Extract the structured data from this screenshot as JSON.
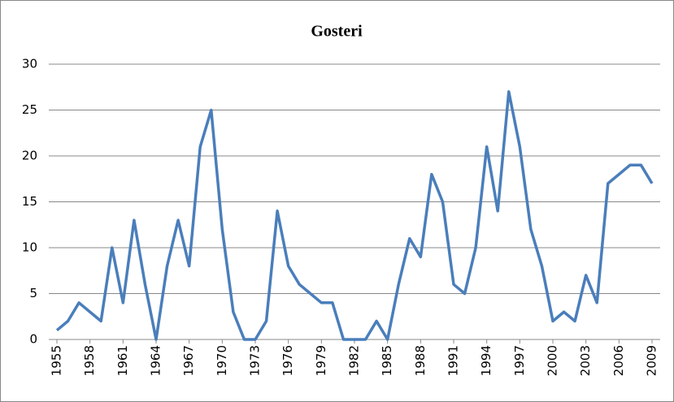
{
  "chart_data": {
    "type": "line",
    "title": "Gosteri",
    "x": [
      1955,
      1956,
      1957,
      1958,
      1959,
      1960,
      1961,
      1962,
      1963,
      1964,
      1965,
      1966,
      1967,
      1968,
      1969,
      1970,
      1971,
      1972,
      1973,
      1974,
      1975,
      1976,
      1977,
      1978,
      1979,
      1980,
      1981,
      1982,
      1983,
      1984,
      1985,
      1986,
      1987,
      1988,
      1989,
      1990,
      1991,
      1992,
      1993,
      1994,
      1995,
      1996,
      1997,
      1998,
      1999,
      2000,
      2001,
      2002,
      2003,
      2004,
      2005,
      2006,
      2007,
      2008,
      2009
    ],
    "series": [
      {
        "name": "Gosteri",
        "color": "#4a7ebb",
        "values": [
          1,
          2,
          4,
          3,
          2,
          10,
          4,
          13,
          6,
          0,
          8,
          13,
          8,
          21,
          25,
          12,
          3,
          0,
          0,
          2,
          14,
          8,
          6,
          5,
          4,
          4,
          0,
          0,
          0,
          2,
          0,
          6,
          11,
          9,
          18,
          15,
          6,
          5,
          10,
          21,
          14,
          27,
          21,
          12,
          8,
          2,
          3,
          2,
          7,
          4,
          17,
          18,
          19,
          19,
          17
        ]
      }
    ],
    "xlim": [
      1955,
      2009
    ],
    "xticks": [
      1955,
      1958,
      1961,
      1964,
      1967,
      1970,
      1973,
      1976,
      1979,
      1982,
      1985,
      1988,
      1991,
      1994,
      1997,
      2000,
      2003,
      2006,
      2009
    ],
    "ylim": [
      0,
      30
    ],
    "yticks": [
      0,
      5,
      10,
      15,
      20,
      25,
      30
    ],
    "grid": true
  }
}
